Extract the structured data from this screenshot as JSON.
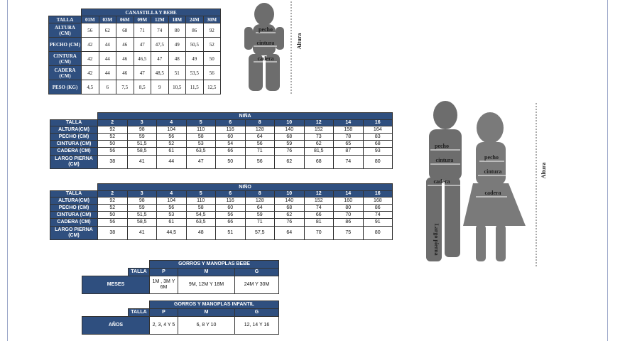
{
  "canastilla": {
    "title": "CANASTILLA Y BEBE",
    "header": [
      "TALLA",
      "01M",
      "03M",
      "06M",
      "09M",
      "12M",
      "18M",
      "24M",
      "30M"
    ],
    "rows": [
      [
        "ALTURA (CM)",
        "56",
        "62",
        "68",
        "71",
        "74",
        "80",
        "86",
        "92"
      ],
      [
        "PECHO (CM)",
        "42",
        "44",
        "46",
        "47",
        "47,5",
        "49",
        "50,5",
        "52"
      ],
      [
        "CINTURA (CM)",
        "42",
        "44",
        "46",
        "46,5",
        "47",
        "48",
        "49",
        "50"
      ],
      [
        "CADERA (CM)",
        "42",
        "44",
        "46",
        "47",
        "48,5",
        "51",
        "53,5",
        "56"
      ],
      [
        "PESO (KG)",
        "4,5",
        "6",
        "7,5",
        "8,5",
        "9",
        "10,5",
        "11,5",
        "12,5"
      ]
    ]
  },
  "baby_figure": {
    "labels": [
      "pecho",
      "cintura",
      "cadera"
    ],
    "axis": "Altura"
  },
  "nina": {
    "title": "NIÑA",
    "header": [
      "TALLA",
      "2",
      "3",
      "4",
      "5",
      "6",
      "8",
      "10",
      "12",
      "14",
      "16"
    ],
    "rows": [
      [
        "ALTURA(CM)",
        "92",
        "98",
        "104",
        "110",
        "116",
        "128",
        "140",
        "152",
        "158",
        "164"
      ],
      [
        "PECHO (CM)",
        "52",
        "59",
        "56",
        "58",
        "60",
        "64",
        "68",
        "73",
        "78",
        "83"
      ],
      [
        "CINTURA (CM)",
        "50",
        "51,5",
        "52",
        "53",
        "54",
        "56",
        "59",
        "62",
        "65",
        "68"
      ],
      [
        "CADERA (CM)",
        "56",
        "58,5",
        "61",
        "63,5",
        "66",
        "71",
        "76",
        "81,5",
        "87",
        "93"
      ],
      [
        "LARGO PIERNA (CM)",
        "38",
        "41",
        "44",
        "47",
        "50",
        "56",
        "62",
        "68",
        "74",
        "80"
      ]
    ]
  },
  "nino": {
    "title": "NIÑO",
    "header": [
      "TALLA",
      "2",
      "3",
      "4",
      "5",
      "6",
      "8",
      "10",
      "12",
      "14",
      "16"
    ],
    "rows": [
      [
        "ALTURA(CM)",
        "92",
        "98",
        "104",
        "110",
        "116",
        "128",
        "140",
        "152",
        "160",
        "168"
      ],
      [
        "PECHO (CM)",
        "52",
        "59",
        "56",
        "58",
        "60",
        "64",
        "68",
        "74",
        "80",
        "86"
      ],
      [
        "CINTURA (CM)",
        "50",
        "51,5",
        "53",
        "54,5",
        "56",
        "59",
        "62",
        "66",
        "70",
        "74"
      ],
      [
        "CADERA (CM)",
        "56",
        "58,5",
        "61",
        "63,5",
        "66",
        "71",
        "76",
        "81",
        "86",
        "91"
      ],
      [
        "LARGO PIERNA (CM)",
        "38",
        "41",
        "44,5",
        "48",
        "51",
        "57,5",
        "64",
        "70",
        "75",
        "80"
      ]
    ]
  },
  "kids_figure": {
    "boy_labels": [
      "pecho",
      "cintura",
      "cadera",
      "Largo pierna"
    ],
    "girl_labels": [
      "pecho",
      "cintura",
      "cadera"
    ],
    "axis": "Altura"
  },
  "gorros_bebe": {
    "title": "GORROS Y MANOPLAS BEBE",
    "header": [
      "TALLA",
      "P",
      "M",
      "G"
    ],
    "rows": [
      [
        "MESES",
        "1M , 3M Y 6M",
        "9M, 12M Y 18M",
        "24M Y 30M"
      ]
    ]
  },
  "gorros_infantil": {
    "title": "GORROS Y MANOPLAS INFANTIL",
    "header": [
      "TALLA",
      "P",
      "M",
      "G"
    ],
    "rows": [
      [
        "AÑOS",
        "2, 3, 4 Y 5",
        "6, 8 Y 10",
        "12, 14 Y 16"
      ]
    ]
  }
}
